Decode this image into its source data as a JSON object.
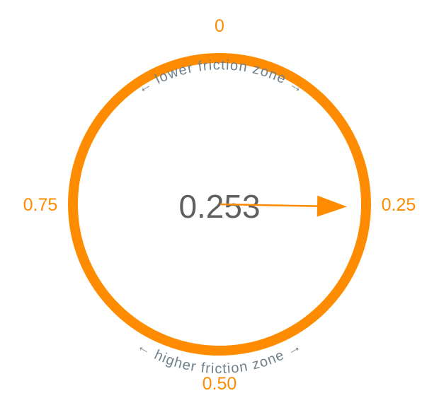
{
  "chart_data": {
    "type": "dial",
    "value": 0.253,
    "value_text": "0.253",
    "scale": [
      0,
      1
    ],
    "ticks": [
      {
        "value": 0,
        "label": "0"
      },
      {
        "value": 0.25,
        "label": "0.25"
      },
      {
        "value": 0.5,
        "label": "0.50"
      },
      {
        "value": 0.75,
        "label": "0.75"
      }
    ],
    "zones": {
      "upper": "← lower friction zone →",
      "lower": "← higher friction zone →"
    },
    "colors": {
      "accent": "#ff8c00",
      "value_text": "#5f5f5f",
      "zone_text": "#70808a"
    }
  }
}
